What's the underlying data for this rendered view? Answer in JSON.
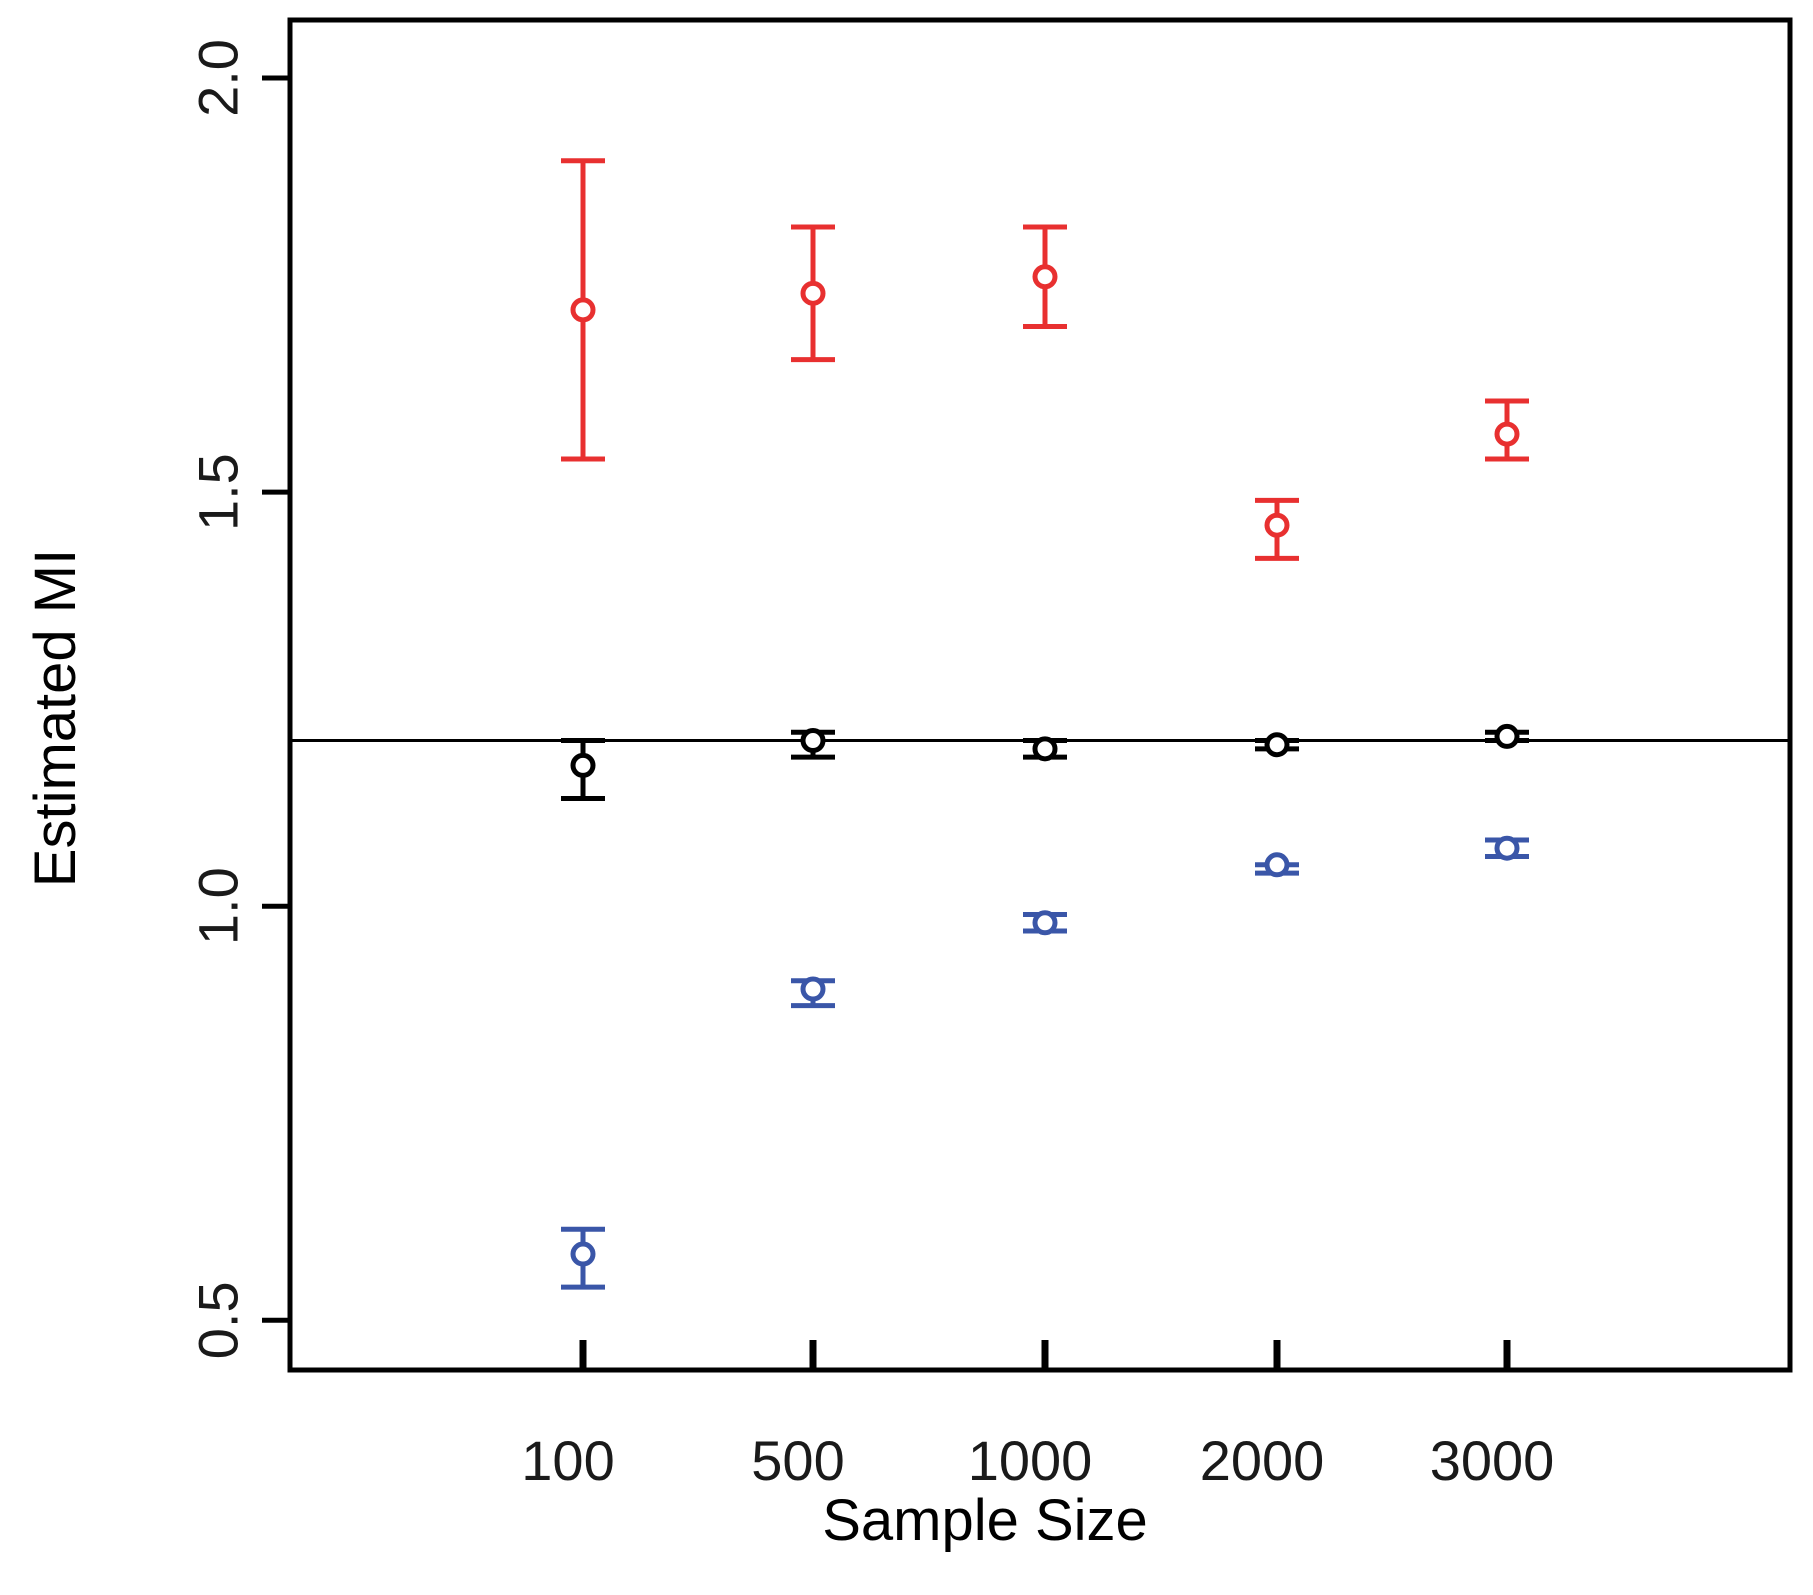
{
  "chart_data": {
    "type": "scatter",
    "title": "",
    "xlabel": "Sample Size",
    "ylabel": "Estimated MI",
    "categories": [
      "100",
      "500",
      "1000",
      "2000",
      "3000"
    ],
    "ylim": [
      0.44,
      2.07
    ],
    "yticks": [
      "0.5",
      "1.0",
      "1.5",
      "2.0"
    ],
    "reference_line": 1.2,
    "grid": false,
    "legend": "none",
    "series": [
      {
        "color": "#e83030",
        "points": [
          {
            "x": "100",
            "y": 1.72,
            "low": 1.54,
            "high": 1.9
          },
          {
            "x": "500",
            "y": 1.74,
            "low": 1.66,
            "high": 1.82
          },
          {
            "x": "1000",
            "y": 1.76,
            "low": 1.7,
            "high": 1.82
          },
          {
            "x": "2000",
            "y": 1.46,
            "low": 1.42,
            "high": 1.49
          },
          {
            "x": "3000",
            "y": 1.57,
            "low": 1.54,
            "high": 1.61
          }
        ]
      },
      {
        "color": "#000000",
        "points": [
          {
            "x": "100",
            "y": 1.17,
            "low": 1.13,
            "high": 1.2
          },
          {
            "x": "500",
            "y": 1.2,
            "low": 1.18,
            "high": 1.21
          },
          {
            "x": "1000",
            "y": 1.19,
            "low": 1.18,
            "high": 1.2
          },
          {
            "x": "2000",
            "y": 1.195,
            "low": 1.19,
            "high": 1.2
          },
          {
            "x": "3000",
            "y": 1.205,
            "low": 1.2,
            "high": 1.21
          }
        ]
      },
      {
        "color": "#3a56a8",
        "points": [
          {
            "x": "100",
            "y": 0.58,
            "low": 0.54,
            "high": 0.61
          },
          {
            "x": "500",
            "y": 0.9,
            "low": 0.88,
            "high": 0.91
          },
          {
            "x": "1000",
            "y": 0.98,
            "low": 0.97,
            "high": 0.99
          },
          {
            "x": "2000",
            "y": 1.05,
            "low": 1.04,
            "high": 1.05
          },
          {
            "x": "3000",
            "y": 1.07,
            "low": 1.06,
            "high": 1.08
          }
        ]
      }
    ]
  }
}
